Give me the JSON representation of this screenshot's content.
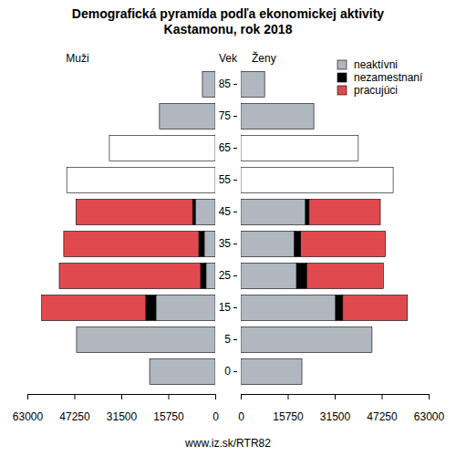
{
  "chart_data": [
    {
      "type": "bar",
      "orientation": "horizontal",
      "stacked": true,
      "title": "Demografická pyramída podľa ekonomickej aktivity",
      "subtitle": "Kastamonu, rok 2018",
      "label": "Muži",
      "y_label": "Vek",
      "source": "www.iz.sk/RTR82",
      "categories": [
        "0",
        "5",
        "15",
        "25",
        "35",
        "45",
        "55",
        "65",
        "75",
        "85"
      ],
      "xlim": [
        63000,
        0
      ],
      "xticks": [
        63000,
        47250,
        31500,
        15750,
        0
      ],
      "series": [
        {
          "name": "neaktívni",
          "color": "#b1b7bf",
          "values": [
            22000,
            46500,
            19900,
            3100,
            3700,
            6700,
            null,
            null,
            18700,
            4300
          ]
        },
        {
          "name": "nezamestnaní",
          "color": "#000000",
          "values": [
            null,
            null,
            3400,
            1800,
            1800,
            900,
            null,
            null,
            null,
            null
          ]
        },
        {
          "name": "pracujúci",
          "color": "#e04a4f",
          "values": [
            null,
            null,
            34900,
            47400,
            45300,
            39100,
            null,
            null,
            null,
            null
          ]
        },
        {
          "name": null,
          "color": "#ffffff",
          "values": [
            null,
            null,
            null,
            null,
            null,
            null,
            49800,
            35500,
            null,
            null
          ]
        }
      ]
    },
    {
      "type": "bar",
      "orientation": "horizontal",
      "stacked": true,
      "label": "Ženy",
      "legend": "top-right",
      "categories": [
        "0",
        "5",
        "15",
        "25",
        "35",
        "45",
        "55",
        "65",
        "75",
        "85"
      ],
      "xlim": [
        0,
        63000
      ],
      "xticks": [
        0,
        15750,
        31500,
        47250,
        63000
      ],
      "series": [
        {
          "name": "neaktívni",
          "color": "#b1b7bf",
          "values": [
            20500,
            44000,
            31800,
            18700,
            18000,
            21700,
            null,
            null,
            24500,
            8000
          ]
        },
        {
          "name": "nezamestnaní",
          "color": "#000000",
          "values": [
            null,
            null,
            2400,
            3400,
            2100,
            1200,
            null,
            null,
            null,
            null
          ]
        },
        {
          "name": "pracujúci",
          "color": "#e04a4f",
          "values": [
            null,
            null,
            21700,
            25700,
            28400,
            23900,
            null,
            null,
            null,
            null
          ]
        },
        {
          "name": null,
          "color": "#ffffff",
          "values": [
            null,
            null,
            null,
            null,
            null,
            null,
            51100,
            39400,
            null,
            null
          ]
        }
      ]
    }
  ]
}
